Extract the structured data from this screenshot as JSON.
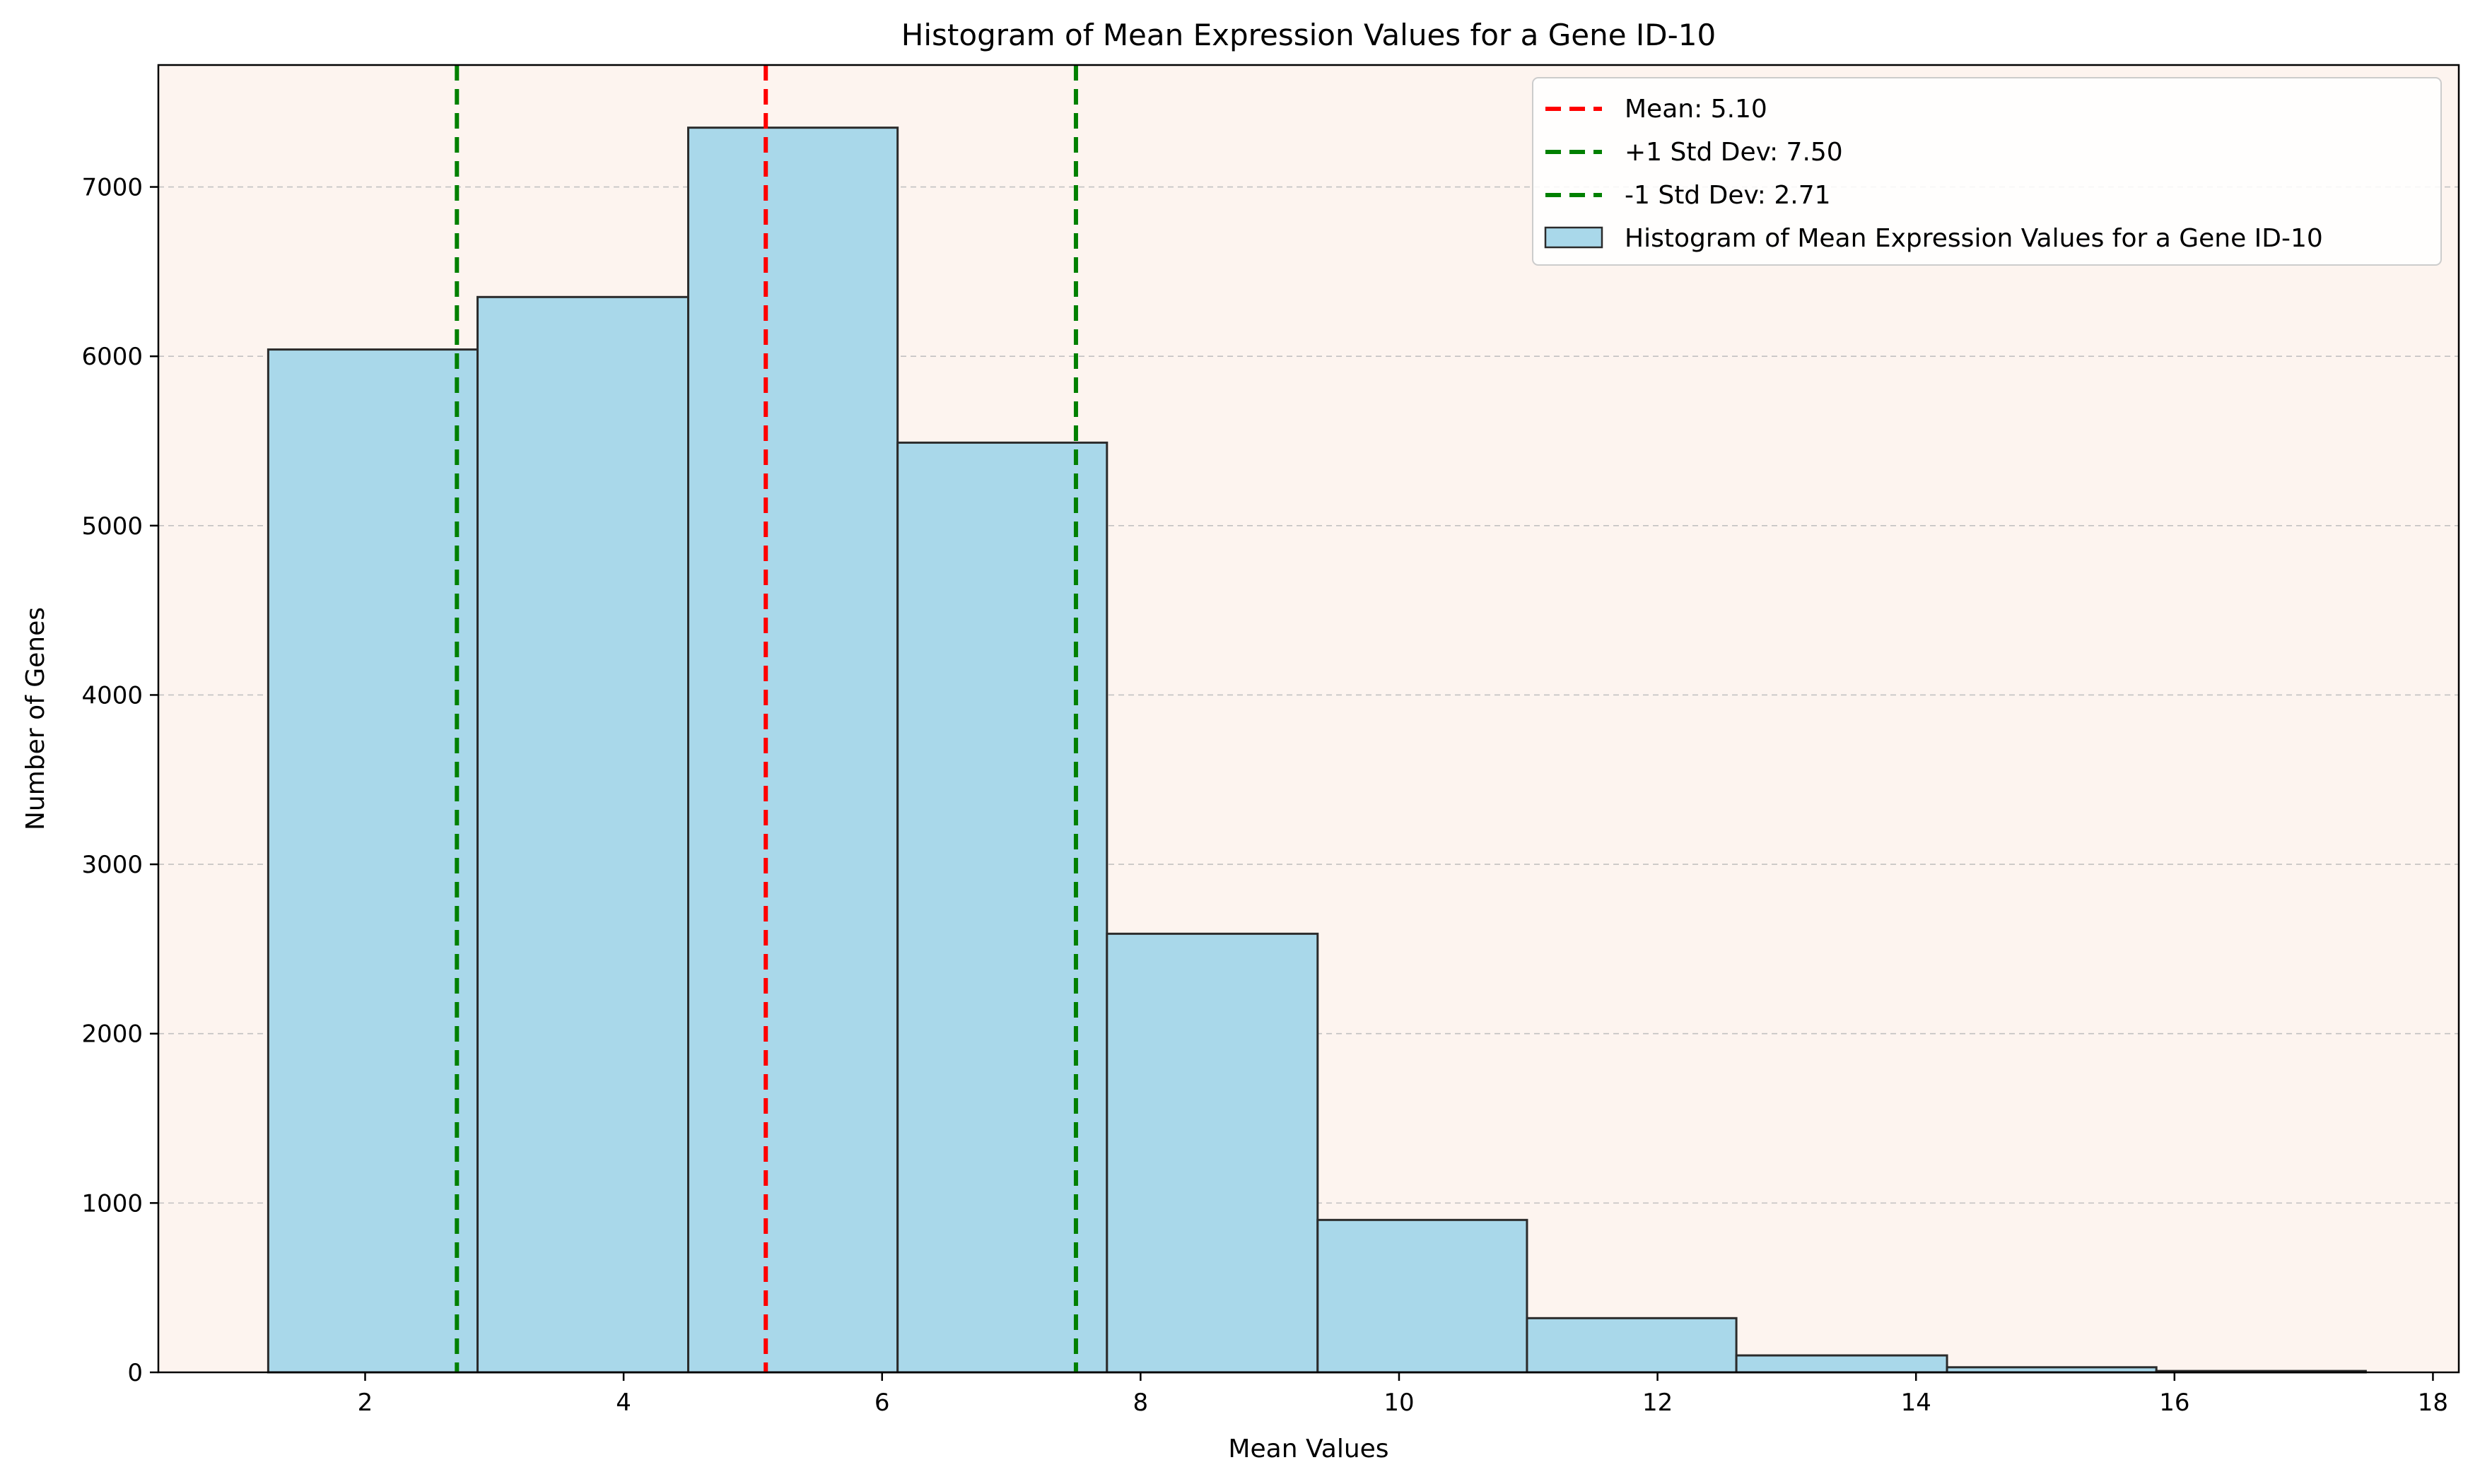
{
  "chart_data": {
    "type": "bar",
    "title": "Histogram of Mean Expression Values for a Gene ID-10",
    "xlabel": "Mean Values",
    "ylabel": "Number of Genes",
    "xlim": [
      0.4,
      18.2
    ],
    "ylim": [
      0,
      7720
    ],
    "xticks": [
      2,
      4,
      6,
      8,
      10,
      12,
      14,
      16,
      18
    ],
    "yticks": [
      0,
      1000,
      2000,
      3000,
      4000,
      5000,
      6000,
      7000
    ],
    "grid": "y-dashed",
    "legend_position": "top-right",
    "colors": {
      "plot_background": "#fdf4ef",
      "bar_fill": "#a9d8ea",
      "bar_edge": "#2b2b2b",
      "mean_line": "#ff0000",
      "std_lines": "#008000"
    },
    "bins": [
      {
        "x0": 1.25,
        "x1": 2.87,
        "count": 6040
      },
      {
        "x0": 2.87,
        "x1": 4.5,
        "count": 6350
      },
      {
        "x0": 4.5,
        "x1": 6.12,
        "count": 7350
      },
      {
        "x0": 6.12,
        "x1": 7.74,
        "count": 5490
      },
      {
        "x0": 7.74,
        "x1": 9.37,
        "count": 2590
      },
      {
        "x0": 9.37,
        "x1": 10.99,
        "count": 900
      },
      {
        "x0": 10.99,
        "x1": 12.61,
        "count": 320
      },
      {
        "x0": 12.61,
        "x1": 14.24,
        "count": 100
      },
      {
        "x0": 14.24,
        "x1": 15.86,
        "count": 30
      },
      {
        "x0": 15.86,
        "x1": 17.48,
        "count": 8
      }
    ],
    "vlines": [
      {
        "label": "Mean: 5.10",
        "x": 5.1,
        "color": "#ff0000"
      },
      {
        "label": "+1 Std Dev: 7.50",
        "x": 7.5,
        "color": "#008000"
      },
      {
        "label": "-1 Std Dev: 2.71",
        "x": 2.71,
        "color": "#008000"
      }
    ],
    "series": [
      {
        "name": "Histogram of Mean Expression Values for a Gene ID-10"
      }
    ]
  }
}
